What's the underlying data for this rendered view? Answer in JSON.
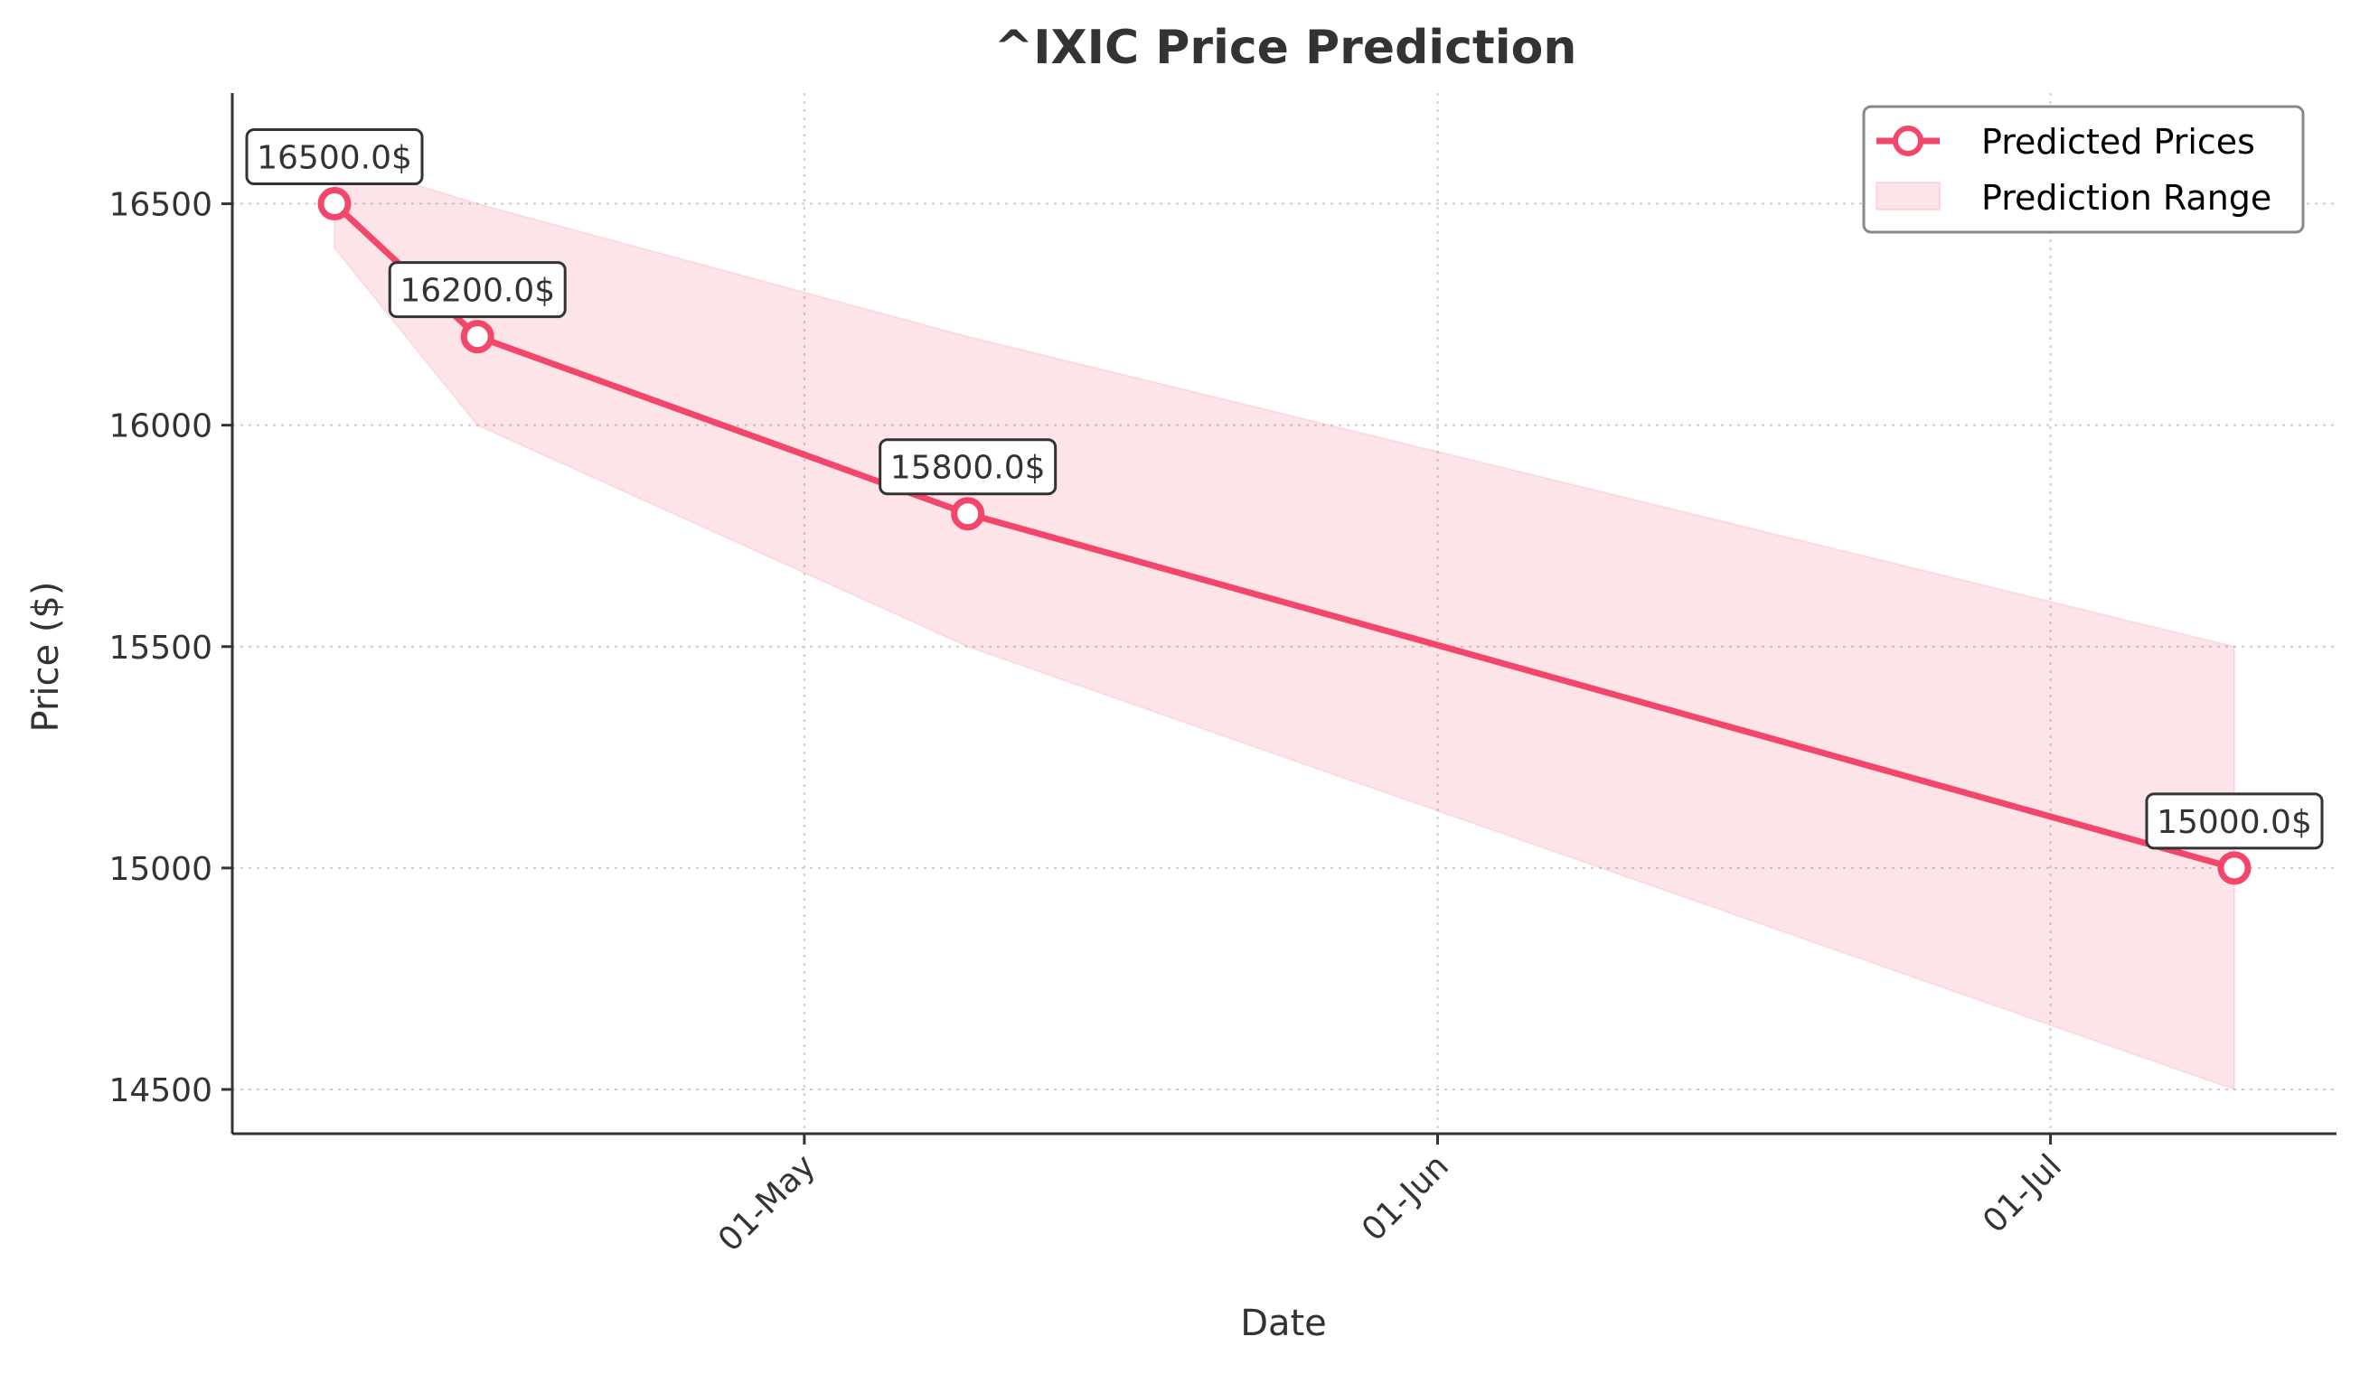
{
  "chart_data": {
    "type": "line",
    "title": "^IXIC Price Prediction",
    "xlabel": "Date",
    "ylabel": "Price ($)",
    "x": [
      "2024-04-08",
      "2024-04-15",
      "2024-05-09",
      "2024-07-10"
    ],
    "series": [
      {
        "name": "Predicted Prices",
        "values": [
          16500,
          16200,
          15800,
          15000
        ],
        "color": "#f2476a"
      }
    ],
    "range": {
      "name": "Prediction Range",
      "lower": [
        16400,
        16000,
        15500,
        14500
      ],
      "upper": [
        16600,
        16500,
        16200,
        15500
      ],
      "color": "#f2476a"
    },
    "data_labels": [
      "16500.0$",
      "16200.0$",
      "15800.0$",
      "15000.0$"
    ],
    "x_ticks": [
      {
        "date": "2024-05-01",
        "label": "01-May"
      },
      {
        "date": "2024-06-01",
        "label": "01-Jun"
      },
      {
        "date": "2024-07-01",
        "label": "01-Jul"
      }
    ],
    "y_ticks": [
      14500,
      15000,
      15500,
      16000,
      16500
    ],
    "xlim": [
      "2024-04-03",
      "2024-07-15"
    ],
    "ylim": [
      14400,
      16750
    ],
    "grid": true,
    "legend_position": "top-right"
  }
}
